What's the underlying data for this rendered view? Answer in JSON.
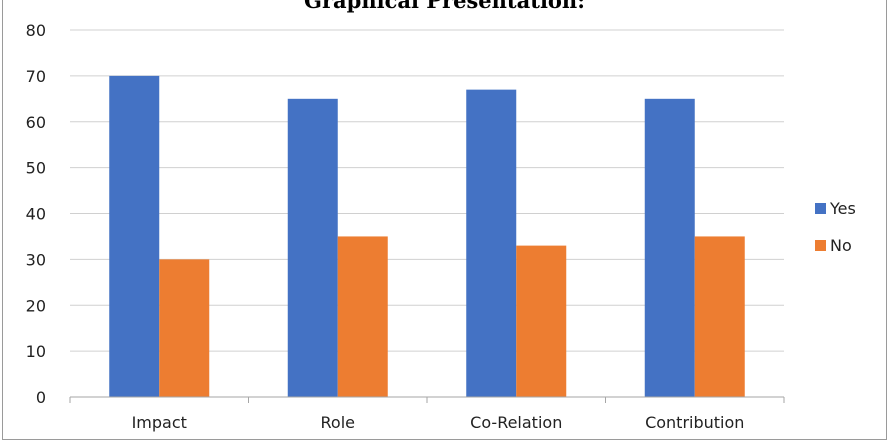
{
  "chart_data": {
    "type": "bar",
    "title": "Graphical Presentation:",
    "categories": [
      "Impact",
      "Role",
      "Co-Relation",
      "Contribution"
    ],
    "series": [
      {
        "name": "Yes",
        "values": [
          70,
          65,
          67,
          65
        ],
        "color": "#4472C4"
      },
      {
        "name": "No",
        "values": [
          30,
          35,
          33,
          35
        ],
        "color": "#ED7D31"
      }
    ],
    "ylim": [
      0,
      80
    ],
    "yticks": [
      0,
      10,
      20,
      30,
      40,
      50,
      60,
      70,
      80
    ],
    "grid": true,
    "legend": "right"
  }
}
